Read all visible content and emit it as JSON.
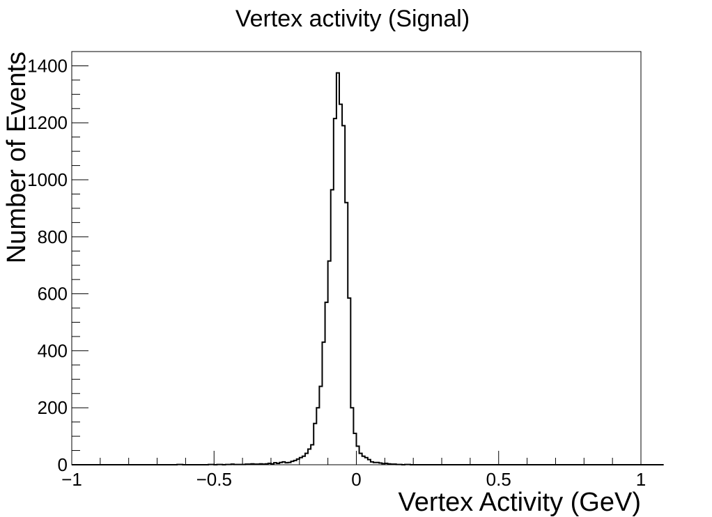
{
  "chart_data": {
    "type": "histogram",
    "title": "Vertex activity (Signal)",
    "xlabel": "Vertex Activity (GeV)",
    "ylabel": "Number of Events",
    "xlim": [
      -1,
      1
    ],
    "ylim": [
      0,
      1450
    ],
    "x_major_ticks": [
      -1,
      -0.5,
      0,
      0.5,
      1
    ],
    "x_tick_labels": [
      "−1",
      "−0.5",
      "0",
      "0.5",
      "1"
    ],
    "y_major_ticks": [
      0,
      200,
      400,
      600,
      800,
      1000,
      1200,
      1400
    ],
    "y_tick_labels": [
      "0",
      "200",
      "400",
      "600",
      "800",
      "1000",
      "1200",
      "1400"
    ],
    "bin_width": 0.01,
    "bin_start": -1.0,
    "grid": false,
    "line_color": "#000000",
    "values": [
      0,
      0,
      0,
      0,
      0,
      0,
      0,
      0,
      0,
      0,
      0,
      0,
      0,
      0,
      0,
      0,
      0,
      0,
      0,
      0,
      0,
      0,
      0,
      0,
      0,
      0,
      0,
      0,
      0,
      0,
      0,
      0,
      0,
      0,
      0,
      0,
      0,
      1,
      1,
      0,
      0,
      0,
      0,
      0,
      0,
      0,
      0,
      0,
      1,
      1,
      0,
      1,
      1,
      0,
      1,
      1,
      2,
      1,
      1,
      1,
      1,
      2,
      2,
      3,
      2,
      2,
      3,
      2,
      3,
      5,
      3,
      7,
      5,
      8,
      10,
      7,
      8,
      12,
      15,
      20,
      25,
      30,
      40,
      55,
      70,
      145,
      200,
      275,
      430,
      570,
      715,
      965,
      1215,
      1375,
      1265,
      1190,
      920,
      585,
      200,
      110,
      65,
      40,
      30,
      25,
      18,
      10,
      8,
      8,
      6,
      4,
      5,
      3,
      2,
      2,
      1,
      1,
      0,
      1,
      1,
      0,
      0,
      0,
      0,
      0,
      0,
      0,
      0,
      0,
      0,
      0,
      0,
      0,
      0,
      0,
      0,
      0,
      0,
      0,
      0,
      0,
      0,
      0,
      0,
      0,
      0,
      0,
      0,
      0,
      0,
      0,
      0,
      0,
      0,
      0,
      0,
      0,
      0,
      0,
      0,
      0,
      0,
      0,
      0,
      0,
      0,
      0,
      0,
      0,
      0,
      0,
      0,
      0,
      0,
      0,
      0,
      0,
      0,
      0,
      0,
      0,
      0,
      0,
      0,
      0,
      0,
      0,
      0,
      0,
      0,
      0,
      0,
      0,
      0,
      0,
      0,
      0,
      0,
      0,
      0,
      0,
      0,
      0,
      0,
      0,
      0,
      0,
      0,
      0
    ]
  }
}
